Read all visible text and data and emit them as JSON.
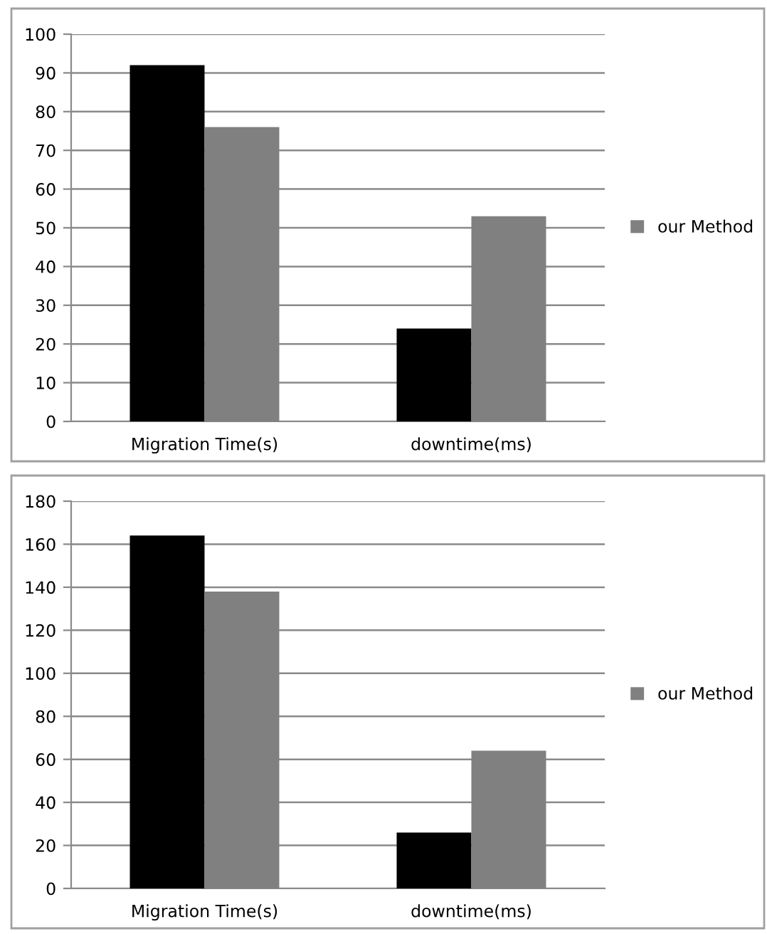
{
  "chart_data": [
    {
      "type": "bar",
      "categories": [
        "Migration Time(s)",
        "downtime(ms)"
      ],
      "series": [
        {
          "color": "#000000",
          "values": [
            92,
            24
          ]
        },
        {
          "name": "our Method",
          "color": "#808080",
          "values": [
            76,
            53
          ]
        }
      ],
      "ylim": [
        0,
        100
      ],
      "yticks": [
        0,
        10,
        20,
        30,
        40,
        50,
        60,
        70,
        80,
        90,
        100
      ],
      "grid": "y",
      "legend": "right"
    },
    {
      "type": "bar",
      "categories": [
        "Migration Time(s)",
        "downtime(ms)"
      ],
      "series": [
        {
          "color": "#000000",
          "values": [
            164,
            26
          ]
        },
        {
          "name": "our Method",
          "color": "#808080",
          "values": [
            138,
            64
          ]
        }
      ],
      "ylim": [
        0,
        180
      ],
      "yticks": [
        0,
        20,
        40,
        60,
        80,
        100,
        120,
        140,
        160,
        180
      ],
      "grid": "y",
      "legend": "right"
    }
  ]
}
